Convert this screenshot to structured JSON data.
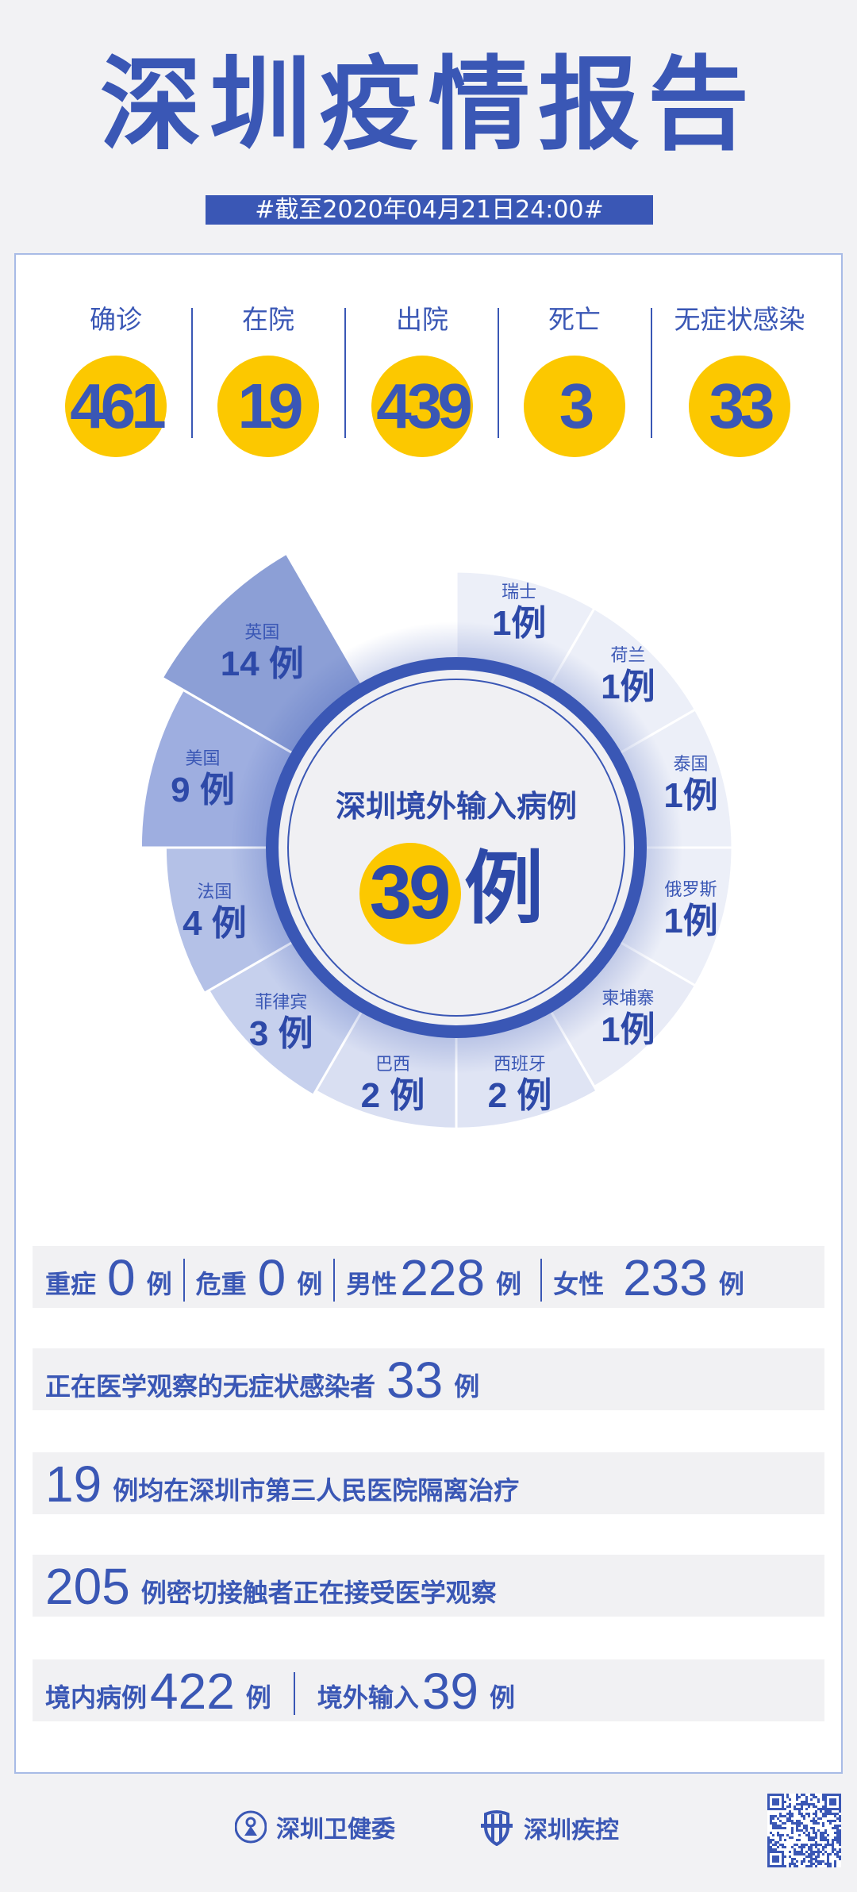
{
  "header": {
    "title": "深圳疫情报告",
    "date": "#截至2020年04月21日24:00#"
  },
  "stats": [
    {
      "label": "确诊",
      "value": "461"
    },
    {
      "label": "在院",
      "value": "19"
    },
    {
      "label": "出院",
      "value": "439"
    },
    {
      "label": "死亡",
      "value": "3"
    },
    {
      "label": "无症状感染",
      "value": "33"
    }
  ],
  "chart_data": {
    "type": "pie",
    "title": "深圳境外输入病例",
    "total": "39",
    "total_unit": "例",
    "unit": "例",
    "categories": [
      "瑞士",
      "荷兰",
      "泰国",
      "俄罗斯",
      "柬埔寨",
      "西班牙",
      "巴西",
      "菲律宾",
      "法国",
      "美国",
      "英国"
    ],
    "values": [
      1,
      1,
      1,
      1,
      1,
      2,
      2,
      3,
      4,
      9,
      14
    ],
    "colors": [
      "#eceff8",
      "#eceff8",
      "#eceff8",
      "#eceff8",
      "#e8ebf6",
      "#dfe4f4",
      "#d9dff2",
      "#c6d0ed",
      "#b4c1e7",
      "#9eaee0",
      "#8c9fd6"
    ]
  },
  "details": {
    "row1": [
      {
        "label": "重症",
        "value": "0",
        "unit": "例"
      },
      {
        "label": "危重",
        "value": "0",
        "unit": "例"
      },
      {
        "label": "男性",
        "value": "228",
        "unit": "例"
      },
      {
        "label": "女性",
        "value": "233",
        "unit": "例"
      }
    ],
    "row2": {
      "label": "正在医学观察的无症状感染者",
      "value": "33",
      "unit": "例"
    },
    "row3": {
      "value": "19",
      "text": "例均在深圳市第三人民医院隔离治疗"
    },
    "row4": {
      "value": "205",
      "text": "例密切接触者正在接受医学观察"
    },
    "row5": [
      {
        "label": "境内病例",
        "value": "422",
        "unit": "例"
      },
      {
        "label": "境外输入",
        "value": "39",
        "unit": "例"
      }
    ]
  },
  "footer": {
    "org1": "深圳卫健委",
    "org2": "深圳疾控",
    "qr": "qr-code"
  },
  "colors": {
    "accent": "#3a57b5",
    "highlight": "#fcc800",
    "background": "#f2f2f4"
  }
}
